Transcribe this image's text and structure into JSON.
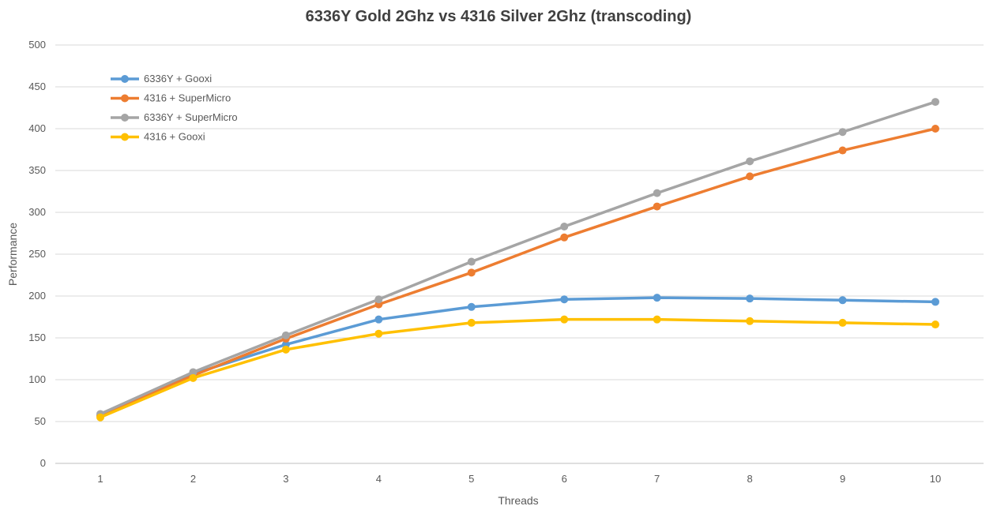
{
  "chart_data": {
    "type": "line",
    "title": "6336Y Gold 2Ghz vs 4316 Silver 2Ghz (transcoding)",
    "xlabel": "Threads",
    "ylabel": "Performance",
    "x": [
      1,
      2,
      3,
      4,
      5,
      6,
      7,
      8,
      9,
      10
    ],
    "x_tick_labels": [
      "1",
      "2",
      "3",
      "4",
      "5",
      "6",
      "7",
      "8",
      "9",
      "10"
    ],
    "ylim": [
      0,
      500
    ],
    "y_ticks": [
      0,
      50,
      100,
      150,
      200,
      250,
      300,
      350,
      400,
      450,
      500
    ],
    "grid": "horizontal",
    "legend_position": "top-left",
    "series": [
      {
        "name": "6336Y + Gooxi",
        "color": "#5B9BD5",
        "values": [
          58,
          107,
          142,
          172,
          187,
          196,
          198,
          197,
          195,
          193
        ]
      },
      {
        "name": "4316 + SuperMicro",
        "color": "#ED7D31",
        "values": [
          57,
          105,
          149,
          190,
          228,
          270,
          307,
          343,
          374,
          400
        ]
      },
      {
        "name": "6336Y + SuperMicro",
        "color": "#A5A5A5",
        "values": [
          59,
          109,
          153,
          196,
          241,
          283,
          323,
          361,
          396,
          432
        ]
      },
      {
        "name": "4316 + Gooxi",
        "color": "#FFC000",
        "values": [
          55,
          102,
          136,
          155,
          168,
          172,
          172,
          170,
          168,
          166
        ]
      }
    ]
  }
}
